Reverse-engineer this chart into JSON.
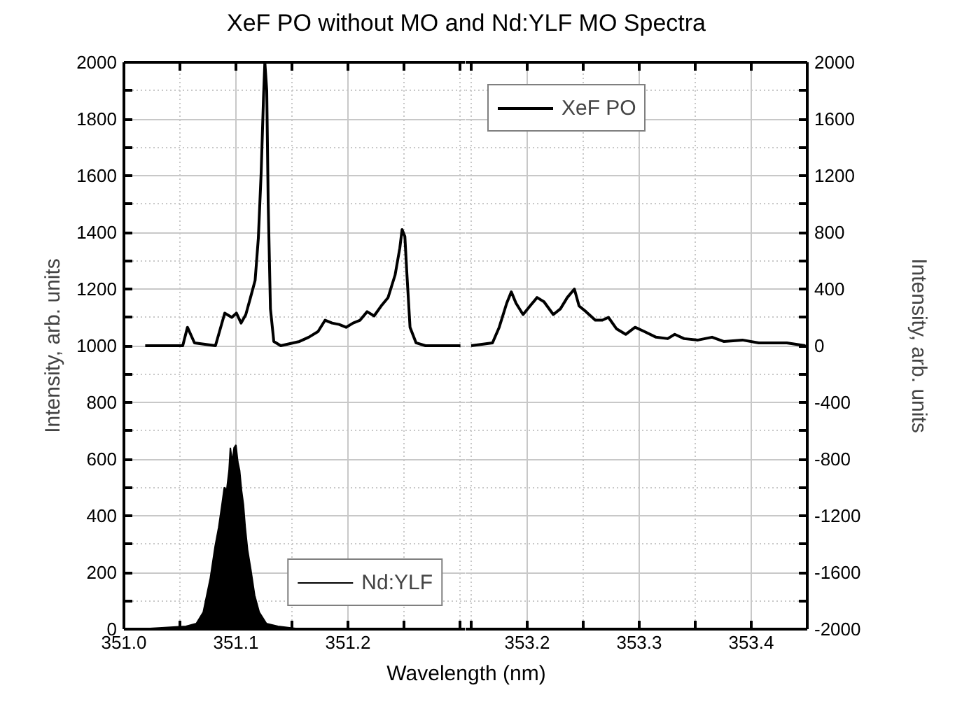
{
  "chart_data": [
    {
      "type": "line",
      "title": "XeF PO without MO and Nd:YLF MO Spectra",
      "xlabel": "Wavelength (nm)",
      "ylabel": "Intensity, arb. units",
      "xlim": [
        351.0,
        351.305
      ],
      "xticks": [
        {
          "value": 351.0,
          "label": "351.0"
        },
        {
          "value": 351.05,
          "label": null
        },
        {
          "value": 351.1,
          "label": "351.1"
        },
        {
          "value": 351.15,
          "label": null
        },
        {
          "value": 351.2,
          "label": "351.2"
        },
        {
          "value": 351.25,
          "label": null
        },
        {
          "value": 351.3,
          "label": null
        }
      ],
      "ylim": [
        0,
        2000
      ],
      "yticks": [
        0,
        {
          "value": 100,
          "label": null
        },
        200,
        {
          "value": 300,
          "label": null
        },
        400,
        {
          "value": 500,
          "label": null
        },
        600,
        {
          "value": 700,
          "label": null
        },
        800,
        {
          "value": 900,
          "label": null
        },
        1000,
        {
          "value": 1100,
          "label": null
        },
        1200,
        {
          "value": 1300,
          "label": null
        },
        1400,
        {
          "value": 1500,
          "label": null
        },
        1600,
        {
          "value": 1700,
          "label": null
        },
        1800,
        {
          "value": 1900,
          "label": null
        },
        2000
      ],
      "y2lim": [
        -2000,
        2000
      ],
      "grid": true,
      "legend": "bottom right",
      "series": [
        {
          "color": "#000000",
          "axis": "y2",
          "x": [
            351.019,
            351.0525,
            351.0567,
            351.063,
            351.0817,
            351.09,
            351.0963,
            351.1004,
            351.1046,
            351.1088,
            351.113,
            351.1171,
            351.12,
            351.1225,
            351.1246,
            351.1258,
            351.1275,
            351.1288,
            351.1308,
            351.1338,
            351.14,
            351.1567,
            351.165,
            351.1733,
            351.1796,
            351.1858,
            351.1921,
            351.1983,
            351.2046,
            351.2108,
            351.2171,
            351.2233,
            351.2296,
            351.2358,
            351.2421,
            351.2463,
            351.2483,
            351.2508,
            351.2525,
            351.2554,
            351.2608,
            351.2692,
            351.3004
          ],
          "values": [
            0,
            0,
            130,
            20,
            0,
            230,
            200,
            230,
            160,
            220,
            340,
            460,
            760,
            1220,
            1750,
            2000,
            1800,
            1000,
            260,
            30,
            0,
            30,
            60,
            100,
            180,
            160,
            150,
            130,
            160,
            180,
            240,
            210,
            280,
            340,
            500,
            690,
            820,
            770,
            520,
            130,
            20,
            0,
            0
          ]
        },
        {
          "name": "Nd:YLF",
          "type": "area",
          "color": "#000000",
          "x": [
            351.0129,
            351.0554,
            351.0646,
            351.0708,
            351.0771,
            351.0813,
            351.0846,
            351.0875,
            351.0896,
            351.0917,
            351.0938,
            351.095,
            351.0967,
            351.0983,
            351.1,
            351.1017,
            351.1033,
            351.105,
            351.1067,
            351.1083,
            351.1104,
            351.1133,
            351.1167,
            351.1208,
            351.1271,
            351.1375,
            351.1583,
            351.1917,
            351.2917
          ],
          "values": [
            0,
            10,
            20,
            60,
            180,
            290,
            360,
            440,
            500,
            490,
            560,
            640,
            590,
            640,
            650,
            590,
            560,
            490,
            440,
            360,
            280,
            210,
            120,
            60,
            20,
            10,
            0,
            0,
            0
          ]
        }
      ]
    },
    {
      "type": "line",
      "y2label": "Intensity, arb. units",
      "xlim": [
        353.145,
        353.45
      ],
      "xticks": [
        {
          "value": 353.15,
          "label": null
        },
        {
          "value": 353.2,
          "label": "353.2"
        },
        {
          "value": 353.25,
          "label": null
        },
        {
          "value": 353.3,
          "label": "353.3"
        },
        {
          "value": 353.35,
          "label": null
        },
        {
          "value": 353.4,
          "label": "353.4"
        }
      ],
      "y2lim": [
        -2000,
        2000
      ],
      "y2ticks": [
        -2000,
        {
          "value": -1800,
          "label": null
        },
        -1600,
        {
          "value": -1400,
          "label": null
        },
        -1200,
        {
          "value": -1000,
          "label": null
        },
        -800,
        {
          "value": -600,
          "label": null
        },
        -400,
        {
          "value": -200,
          "label": null
        },
        0,
        {
          "value": 200,
          "label": null
        },
        400,
        {
          "value": 600,
          "label": null
        },
        800,
        {
          "value": 1000,
          "label": null
        },
        1200,
        {
          "value": 1400,
          "label": null
        },
        1600,
        {
          "value": 1800,
          "label": null
        },
        2000
      ],
      "grid": true,
      "legend": "top left",
      "series": [
        {
          "name": "XeF PO",
          "color": "#000000",
          "axis": "y2",
          "x": [
            353.15,
            353.169,
            353.175,
            353.1817,
            353.1858,
            353.19,
            353.1963,
            353.2025,
            353.2088,
            353.215,
            353.2233,
            353.2296,
            353.2358,
            353.2421,
            353.2463,
            353.2525,
            353.2608,
            353.2671,
            353.2725,
            353.2796,
            353.2879,
            353.2963,
            353.3046,
            353.315,
            353.3254,
            353.3317,
            353.34,
            353.3525,
            353.365,
            353.3754,
            353.3921,
            353.4067,
            353.4317,
            353.4483
          ],
          "values": [
            0,
            20,
            130,
            300,
            380,
            300,
            220,
            280,
            340,
            310,
            220,
            260,
            340,
            400,
            280,
            240,
            180,
            180,
            200,
            120,
            80,
            130,
            100,
            60,
            50,
            80,
            50,
            40,
            60,
            30,
            40,
            20,
            20,
            0
          ]
        }
      ]
    }
  ]
}
